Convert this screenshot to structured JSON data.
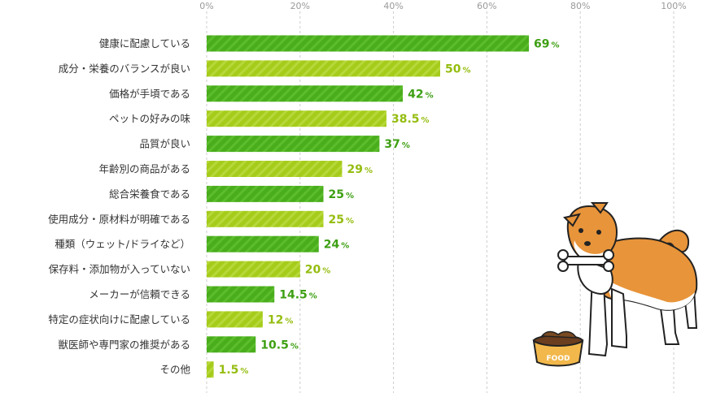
{
  "chart_data": {
    "type": "bar",
    "orientation": "horizontal",
    "categories": [
      "健康に配慮している",
      "成分・栄養のバランスが良い",
      "価格が手頃である",
      "ペットの好みの味",
      "品質が良い",
      "年齢別の商品がある",
      "総合栄養食である",
      "使用成分・原材料が明確である",
      "種類（ウェット/ドライなど）",
      "保存料・添加物が入っていない",
      "メーカーが信頼できる",
      "特定の症状向けに配慮している",
      "獣医師や専門家の推奨がある",
      "その他"
    ],
    "values": [
      69,
      50,
      42,
      38.5,
      37,
      29,
      25,
      25,
      24,
      20,
      14.5,
      12,
      10.5,
      1.5
    ],
    "value_labels": [
      "69",
      "50",
      "42",
      "38.5",
      "37",
      "29",
      "25",
      "25",
      "24",
      "20",
      "14.5",
      "12",
      "10.5",
      "1.5"
    ],
    "value_unit": "%",
    "xlim": [
      0,
      100
    ],
    "ticks": [
      0,
      20,
      40,
      60,
      80,
      100
    ],
    "tick_labels": [
      "0%",
      "20%",
      "40%",
      "60%",
      "80%",
      "100%"
    ],
    "grid": true,
    "title": "",
    "xlabel": "",
    "ylabel": "",
    "colors": {
      "bar_dark": "#49ad1c",
      "bar_light": "#a6cc1b",
      "label_dark": "#3d9f12",
      "label_light": "#95bd10",
      "grid": "#cccccc"
    }
  },
  "illustration": {
    "bowl_label": "FOOD"
  }
}
